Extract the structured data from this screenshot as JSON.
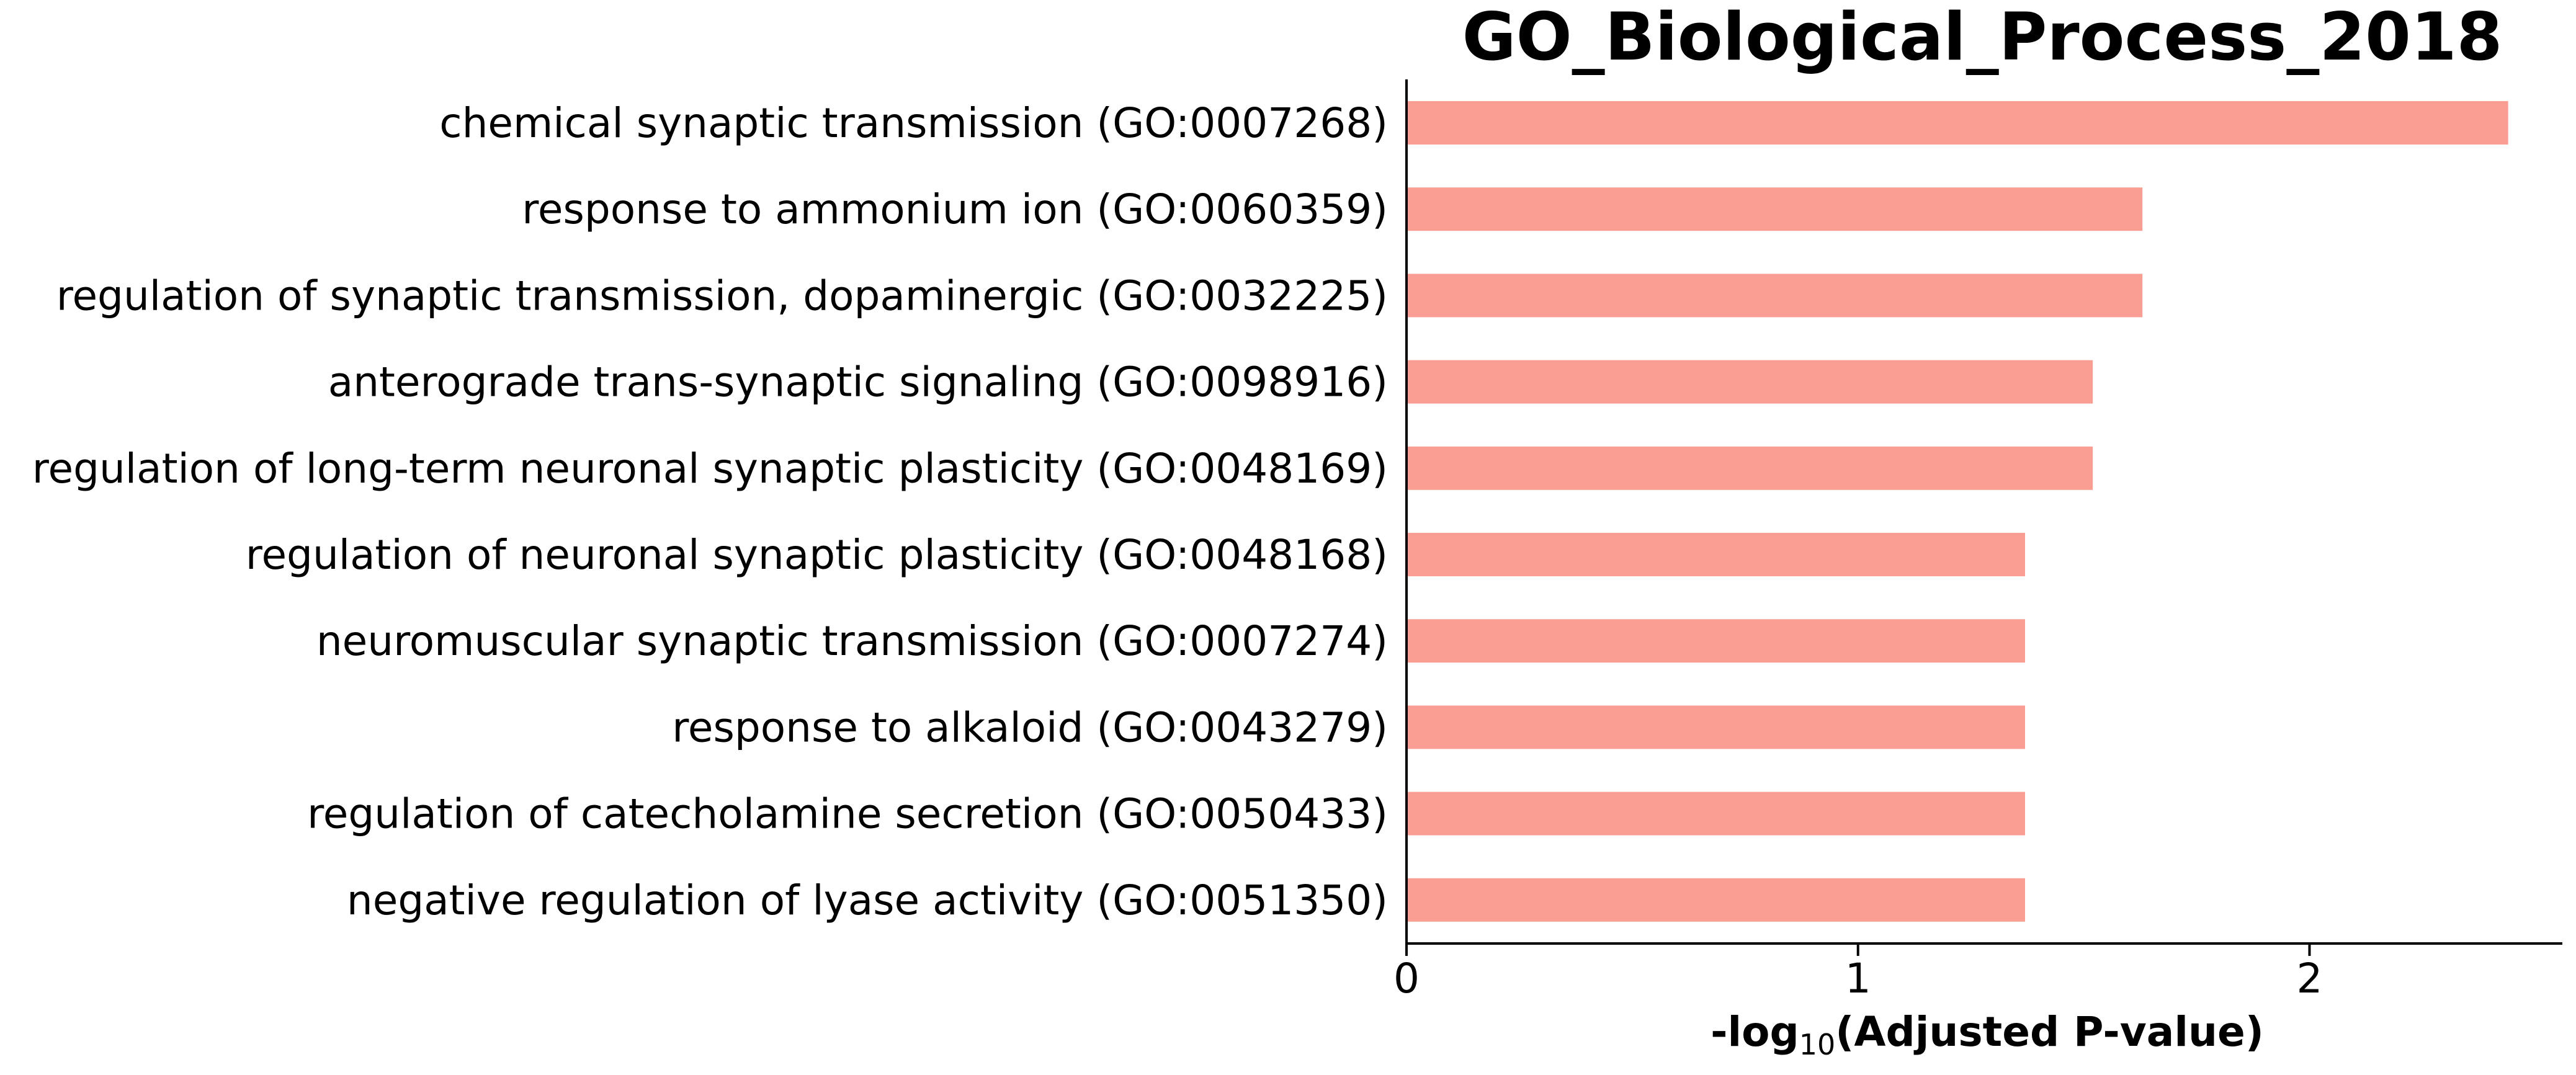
{
  "chart_data": {
    "type": "bar",
    "orientation": "horizontal",
    "title": "GO_Biological_Process_2018",
    "xlabel_prefix": "-log",
    "xlabel_subscript": "10",
    "xlabel_suffix": "(Adjusted P-value)",
    "categories": [
      "chemical synaptic transmission (GO:0007268)",
      "response to ammonium ion (GO:0060359)",
      "regulation of synaptic transmission, dopaminergic (GO:0032225)",
      "anterograde trans-synaptic signaling (GO:0098916)",
      "regulation of long-term neuronal synaptic plasticity (GO:0048169)",
      "regulation of neuronal synaptic plasticity (GO:0048168)",
      "neuromuscular synaptic transmission (GO:0007274)",
      "response to alkaloid (GO:0043279)",
      "regulation of catecholamine secretion (GO:0050433)",
      "negative regulation of lyase activity (GO:0051350)"
    ],
    "values": [
      2.44,
      1.63,
      1.63,
      1.52,
      1.52,
      1.37,
      1.37,
      1.37,
      1.37,
      1.37
    ],
    "xlim": [
      0,
      2.56
    ],
    "xticks": [
      0,
      1,
      2
    ],
    "bar_color": "#fa9e93",
    "grid": false,
    "legend": "none"
  }
}
